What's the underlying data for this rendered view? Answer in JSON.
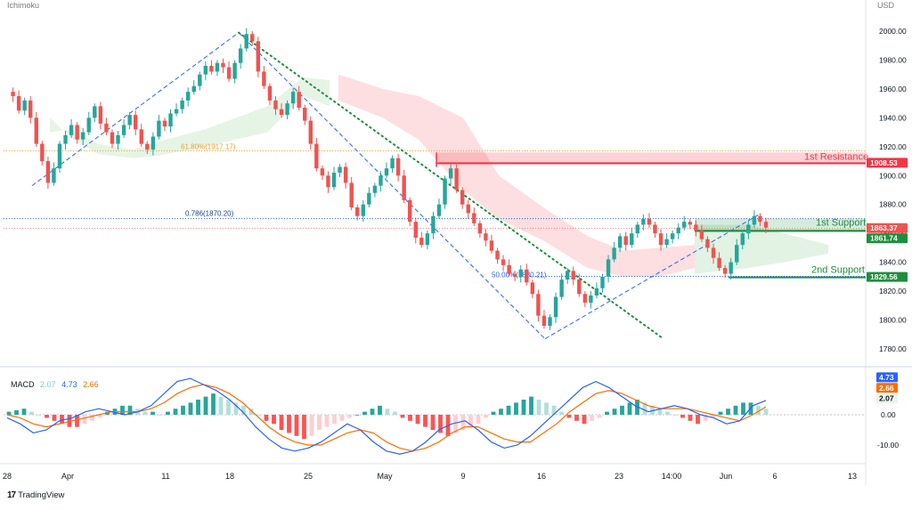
{
  "header": {
    "indicator": "Ichimoku",
    "currency": "USD"
  },
  "branding": {
    "logo_mark": "17",
    "name": "TradingView"
  },
  "colors": {
    "up": "#26a69a",
    "down": "#ef5350",
    "resistance": "#f23645",
    "support": "#1e8e3e",
    "macd_line": "#2962ff",
    "signal_line": "#ff6d00",
    "fib_618": "#f0a030",
    "fib_786": "#2962ff",
    "fib_50": "#2962ff",
    "trendline": "#1e8e3e",
    "channel": "#2962ff"
  },
  "chart_data": [
    {
      "type": "candlestick",
      "title": "",
      "x_ticks": [
        "28",
        "Apr",
        "11",
        "18",
        "25",
        "May",
        "9",
        "16",
        "23",
        "14:00",
        "Jun",
        "6",
        "13"
      ],
      "y_ticks": [
        1780,
        1800,
        1820,
        1840,
        1860,
        1880,
        1900,
        1920,
        1940,
        1960,
        1980,
        2000
      ],
      "ylim": [
        1767,
        2004
      ],
      "price_path": [
        1958,
        1955,
        1945,
        1952,
        1940,
        1922,
        1910,
        1895,
        1905,
        1922,
        1928,
        1935,
        1925,
        1930,
        1940,
        1948,
        1936,
        1930,
        1922,
        1928,
        1935,
        1942,
        1932,
        1922,
        1918,
        1927,
        1938,
        1934,
        1943,
        1946,
        1952,
        1958,
        1962,
        1970,
        1976,
        1972,
        1978,
        1975,
        1967,
        1978,
        1988,
        1998,
        1993,
        1972,
        1962,
        1952,
        1946,
        1942,
        1950,
        1958,
        1947,
        1938,
        1922,
        1905,
        1900,
        1892,
        1902,
        1906,
        1895,
        1878,
        1872,
        1880,
        1888,
        1893,
        1900,
        1905,
        1912,
        1900,
        1883,
        1868,
        1857,
        1852,
        1860,
        1872,
        1880,
        1898,
        1905,
        1890,
        1880,
        1874,
        1867,
        1860,
        1855,
        1848,
        1842,
        1838,
        1832,
        1830,
        1835,
        1826,
        1818,
        1803,
        1796,
        1802,
        1816,
        1828,
        1834,
        1828,
        1818,
        1812,
        1817,
        1822,
        1830,
        1842,
        1850,
        1858,
        1852,
        1860,
        1866,
        1870,
        1866,
        1860,
        1852,
        1856,
        1860,
        1864,
        1868,
        1866,
        1862,
        1856,
        1850,
        1843,
        1836,
        1832,
        1840,
        1852,
        1860,
        1866,
        1872,
        1868,
        1864
      ],
      "ichimoku_cloud": {
        "green": [
          [
            56,
            1930,
            1940
          ],
          [
            80,
            1932,
            1926
          ],
          [
            110,
            1922,
            1915
          ],
          [
            150,
            1918,
            1912
          ],
          [
            180,
            1924,
            1914
          ],
          [
            230,
            1932,
            1920
          ],
          [
            300,
            1948,
            1930
          ],
          [
            340,
            1968,
            1955
          ],
          [
            370,
            1966,
            1948
          ]
        ],
        "red": [
          [
            380,
            1970,
            1952
          ],
          [
            430,
            1960,
            1940
          ],
          [
            470,
            1955,
            1925
          ],
          [
            520,
            1940,
            1890
          ],
          [
            560,
            1900,
            1870
          ],
          [
            610,
            1878,
            1855
          ],
          [
            660,
            1858,
            1836
          ],
          [
            700,
            1848,
            1830
          ],
          [
            740,
            1850,
            1830
          ],
          [
            780,
            1852,
            1836
          ]
        ],
        "green_late": [
          [
            780,
            1866,
            1832
          ],
          [
            840,
            1866,
            1836
          ],
          [
            880,
            1860,
            1840
          ],
          [
            930,
            1852,
            1846
          ]
        ]
      },
      "levels": [
        {
          "label": "1st Resistance",
          "value": 1908.53
        },
        {
          "label": "1st Support",
          "value": 1861.74
        },
        {
          "label": "2nd Support",
          "value": 1829.56
        }
      ],
      "fibonacci": [
        {
          "label": "61.80%(1917.17)",
          "value": 1917.17
        },
        {
          "label": "0.786(1870.20)",
          "value": 1870.2
        },
        {
          "label": "50.00%(1830.21)",
          "value": 1830.21
        }
      ],
      "current_price": 1863.37,
      "price_tags": [
        {
          "text": "1908.53",
          "value": 1908.53,
          "kind": "resistance"
        },
        {
          "text": "1863.37",
          "value": 1863.37,
          "kind": "last"
        },
        {
          "text": "1861.74",
          "value": 1861.74,
          "kind": "support"
        },
        {
          "text": "1829.56",
          "value": 1829.56,
          "kind": "support"
        }
      ],
      "grid": false
    },
    {
      "type": "macd",
      "legend": {
        "name": "MACD",
        "values": [
          "2.07",
          "4.73",
          "2.66"
        ]
      },
      "y_ticks": [
        "0.00",
        "-10.00"
      ],
      "ylim": [
        -14,
        16
      ],
      "histogram": [
        1,
        1.5,
        2,
        1,
        0,
        -1,
        -2,
        -3,
        -4,
        -4,
        -3,
        -2,
        -1,
        1,
        2,
        3,
        3,
        2,
        1,
        1,
        0,
        1,
        2,
        3,
        4,
        5,
        6,
        7,
        6,
        5,
        4,
        3,
        2,
        0,
        -2,
        -3,
        -5,
        -6,
        -7,
        -8,
        -7,
        -5,
        -4,
        -3,
        -2,
        -1,
        0,
        1,
        2,
        3,
        2,
        1,
        -1,
        -2,
        -3,
        -4,
        -5,
        -6,
        -7,
        -6,
        -5,
        -4,
        -3,
        -1,
        1,
        2,
        3,
        4,
        5,
        6,
        5,
        4,
        3,
        1,
        -1,
        -2,
        -3,
        -2,
        -1,
        1,
        2,
        3,
        4,
        5,
        4,
        3,
        2,
        1,
        0,
        -1,
        -2,
        -3,
        -2,
        -1,
        1,
        2,
        3,
        4,
        4,
        3,
        2
      ],
      "macd_line": [
        -1,
        -3,
        -6,
        -5,
        -2,
        -1,
        1,
        2,
        1,
        0,
        1,
        3,
        7,
        11,
        12,
        10,
        8,
        5,
        1,
        -4,
        -8,
        -11,
        -12,
        -11,
        -9,
        -6,
        -3,
        -5,
        -9,
        -12,
        -13,
        -12,
        -9,
        -5,
        -3,
        -2,
        -5,
        -9,
        -11,
        -10,
        -7,
        -3,
        1,
        5,
        9,
        11,
        9,
        6,
        3,
        1,
        2,
        3,
        2,
        0,
        -1,
        -3,
        -2,
        3,
        4.73
      ],
      "signal_line": [
        0,
        -1,
        -3,
        -4,
        -3,
        -2,
        -1,
        0,
        1,
        1,
        1,
        2,
        4,
        7,
        9,
        10,
        9,
        7,
        4,
        0,
        -4,
        -7,
        -9,
        -10,
        -10,
        -8,
        -6,
        -5,
        -6,
        -9,
        -11,
        -12,
        -11,
        -9,
        -6,
        -4,
        -4,
        -6,
        -8,
        -9,
        -9,
        -6,
        -3,
        1,
        4,
        7,
        8,
        7,
        5,
        3,
        2,
        2,
        2,
        1,
        0,
        -1,
        -2,
        0,
        2.66
      ]
    }
  ]
}
